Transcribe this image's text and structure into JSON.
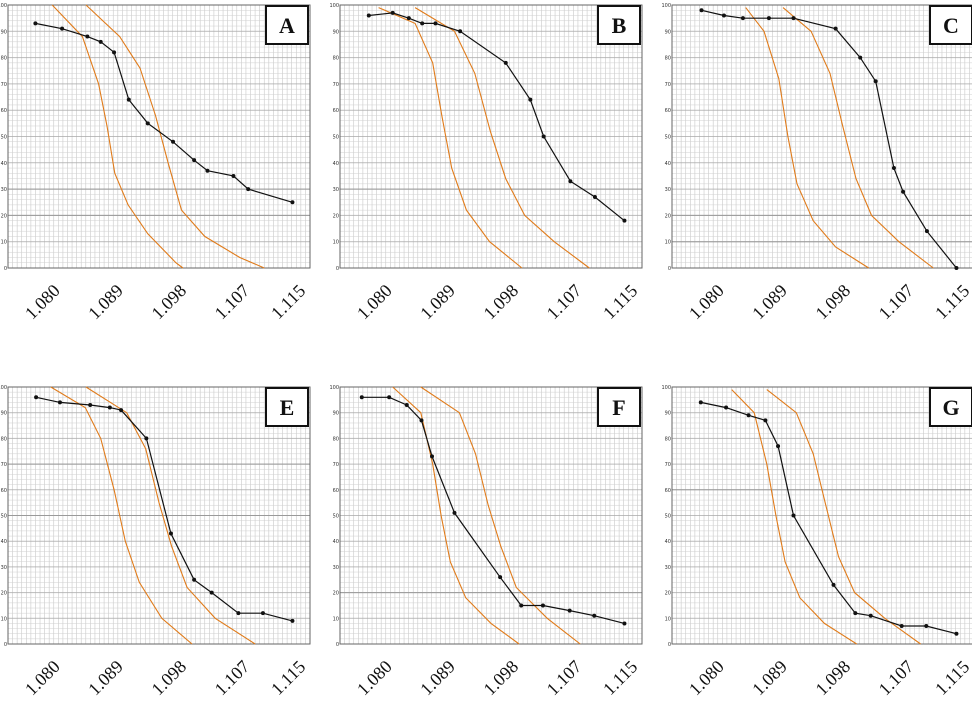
{
  "colors": {
    "envelope": "#e07b1a",
    "series": "#111111",
    "grid_major": "#9a9a9a",
    "grid_minor": "#c8c8c8"
  },
  "chart_data": [
    {
      "type": "line",
      "panel": "A",
      "x_tick_labels": [
        "1.080",
        "1.089",
        "1.098",
        "1.107",
        "1.115"
      ],
      "y_tick_labels": [
        "0",
        "10",
        "20",
        "30",
        "40",
        "50",
        "60",
        "70",
        "80",
        "90",
        "100"
      ],
      "ylim": [
        0,
        100
      ],
      "xlim": [
        1.0745,
        1.1175
      ],
      "grid": true,
      "series": [
        {
          "points": [
            [
              1.0784,
              93
            ],
            [
              1.0822,
              91
            ],
            [
              1.0858,
              88
            ],
            [
              1.0877,
              86
            ],
            [
              1.0896,
              82
            ],
            [
              1.0917,
              64
            ],
            [
              1.0944,
              55
            ],
            [
              1.098,
              48
            ],
            [
              1.101,
              41
            ],
            [
              1.1029,
              37
            ],
            [
              1.1066,
              35
            ],
            [
              1.1087,
              30
            ],
            [
              1.115,
              25
            ]
          ]
        }
      ],
      "envelopes": [
        [
          [
            1.0808,
            100
          ],
          [
            1.0851,
            88
          ],
          [
            1.0874,
            70
          ],
          [
            1.0886,
            54
          ],
          [
            1.0897,
            36
          ],
          [
            1.0916,
            24
          ],
          [
            1.0944,
            13
          ],
          [
            1.0984,
            2
          ],
          [
            1.0994,
            0
          ]
        ],
        [
          [
            1.0856,
            100
          ],
          [
            1.0904,
            88
          ],
          [
            1.0933,
            76
          ],
          [
            1.0955,
            58
          ],
          [
            1.0973,
            40
          ],
          [
            1.0992,
            22
          ],
          [
            1.1025,
            12
          ],
          [
            1.1075,
            4
          ],
          [
            1.111,
            0
          ]
        ]
      ]
    },
    {
      "type": "line",
      "panel": "B",
      "x_tick_labels": [
        "1.080",
        "1.089",
        "1.098",
        "1.107",
        "1.115"
      ],
      "y_tick_labels": [
        "0",
        "10",
        "20",
        "30",
        "40",
        "50",
        "60",
        "70",
        "80",
        "90",
        "100"
      ],
      "ylim": [
        0,
        100
      ],
      "xlim": [
        1.0745,
        1.1175
      ],
      "grid": true,
      "series": [
        {
          "points": [
            [
              1.0786,
              96
            ],
            [
              1.082,
              97
            ],
            [
              1.0843,
              95
            ],
            [
              1.0862,
              93
            ],
            [
              1.0881,
              93
            ],
            [
              1.0916,
              90
            ],
            [
              1.0981,
              78
            ],
            [
              1.1016,
              64
            ],
            [
              1.1035,
              50
            ],
            [
              1.1073,
              33
            ],
            [
              1.1108,
              27
            ],
            [
              1.115,
              18
            ]
          ]
        }
      ],
      "envelopes": [
        [
          [
            1.08,
            99
          ],
          [
            1.0852,
            93
          ],
          [
            1.0877,
            78
          ],
          [
            1.089,
            58
          ],
          [
            1.0904,
            38
          ],
          [
            1.0925,
            22
          ],
          [
            1.0958,
            10
          ],
          [
            1.1004,
            0
          ]
        ],
        [
          [
            1.0852,
            99
          ],
          [
            1.0908,
            90
          ],
          [
            1.0937,
            74
          ],
          [
            1.0959,
            52
          ],
          [
            1.0981,
            34
          ],
          [
            1.1008,
            20
          ],
          [
            1.105,
            10
          ],
          [
            1.11,
            0
          ]
        ]
      ]
    },
    {
      "type": "line",
      "panel": "C",
      "x_tick_labels": [
        "1.080",
        "1.089",
        "1.098",
        "1.107",
        "1.115"
      ],
      "y_tick_labels": [
        "0",
        "10",
        "20",
        "30",
        "40",
        "50",
        "60",
        "70",
        "80",
        "90",
        "100"
      ],
      "ylim": [
        0,
        100
      ],
      "xlim": [
        1.0745,
        1.1175
      ],
      "grid": true,
      "series": [
        {
          "points": [
            [
              1.0787,
              98
            ],
            [
              1.0819,
              96
            ],
            [
              1.0846,
              95
            ],
            [
              1.0883,
              95
            ],
            [
              1.0918,
              95
            ],
            [
              1.0978,
              91
            ],
            [
              1.1013,
              80
            ],
            [
              1.1035,
              71
            ],
            [
              1.1061,
              38
            ],
            [
              1.1074,
              29
            ],
            [
              1.1108,
              14
            ],
            [
              1.115,
              0
            ]
          ]
        }
      ],
      "envelopes": [
        [
          [
            1.085,
            99
          ],
          [
            1.0876,
            90
          ],
          [
            1.0897,
            72
          ],
          [
            1.091,
            50
          ],
          [
            1.0923,
            32
          ],
          [
            1.0946,
            18
          ],
          [
            1.0978,
            8
          ],
          [
            1.1025,
            0
          ]
        ],
        [
          [
            1.0903,
            99
          ],
          [
            1.0943,
            90
          ],
          [
            1.097,
            74
          ],
          [
            1.0988,
            54
          ],
          [
            1.1007,
            34
          ],
          [
            1.1029,
            20
          ],
          [
            1.1068,
            10
          ],
          [
            1.1117,
            0
          ]
        ]
      ]
    },
    {
      "type": "line",
      "panel": "E",
      "x_tick_labels": [
        "1.080",
        "1.089",
        "1.098",
        "1.107",
        "1.115"
      ],
      "y_tick_labels": [
        "0",
        "10",
        "20",
        "30",
        "40",
        "50",
        "60",
        "70",
        "80",
        "90",
        "100"
      ],
      "ylim": [
        0,
        100
      ],
      "xlim": [
        1.0745,
        1.1175
      ],
      "grid": true,
      "series": [
        {
          "points": [
            [
              1.0785,
              96
            ],
            [
              1.0819,
              94
            ],
            [
              1.0862,
              93
            ],
            [
              1.089,
              92
            ],
            [
              1.0906,
              91
            ],
            [
              1.0942,
              80
            ],
            [
              1.0977,
              43
            ],
            [
              1.101,
              25
            ],
            [
              1.1035,
              20
            ],
            [
              1.1073,
              12
            ],
            [
              1.1108,
              12
            ],
            [
              1.115,
              9
            ]
          ]
        }
      ],
      "envelopes": [
        [
          [
            1.0806,
            100
          ],
          [
            1.0855,
            92
          ],
          [
            1.0877,
            80
          ],
          [
            1.0896,
            60
          ],
          [
            1.0912,
            40
          ],
          [
            1.0932,
            24
          ],
          [
            1.0964,
            10
          ],
          [
            1.1007,
            0
          ]
        ],
        [
          [
            1.0856,
            100
          ],
          [
            1.0914,
            90
          ],
          [
            1.0941,
            76
          ],
          [
            1.096,
            55
          ],
          [
            1.0978,
            38
          ],
          [
            1.1,
            22
          ],
          [
            1.104,
            10
          ],
          [
            1.1097,
            0
          ]
        ]
      ]
    },
    {
      "type": "line",
      "panel": "F",
      "x_tick_labels": [
        "1.080",
        "1.089",
        "1.098",
        "1.107",
        "1.115"
      ],
      "y_tick_labels": [
        "0",
        "10",
        "20",
        "30",
        "40",
        "50",
        "60",
        "70",
        "80",
        "90",
        "100"
      ],
      "ylim": [
        0,
        100
      ],
      "xlim": [
        1.0745,
        1.1175
      ],
      "grid": true,
      "series": [
        {
          "points": [
            [
              1.0776,
              96
            ],
            [
              1.0815,
              96
            ],
            [
              1.084,
              93
            ],
            [
              1.0861,
              87
            ],
            [
              1.0876,
              73
            ],
            [
              1.0908,
              51
            ],
            [
              1.0973,
              26
            ],
            [
              1.1003,
              15
            ],
            [
              1.1034,
              15
            ],
            [
              1.1072,
              13
            ],
            [
              1.1107,
              11
            ],
            [
              1.115,
              8
            ]
          ]
        }
      ],
      "envelopes": [
        [
          [
            1.082,
            100
          ],
          [
            1.086,
            90
          ],
          [
            1.0877,
            70
          ],
          [
            1.0889,
            50
          ],
          [
            1.0902,
            32
          ],
          [
            1.0924,
            18
          ],
          [
            1.096,
            8
          ],
          [
            1.1,
            0
          ]
        ],
        [
          [
            1.086,
            100
          ],
          [
            1.0915,
            90
          ],
          [
            1.0938,
            74
          ],
          [
            1.0956,
            54
          ],
          [
            1.0974,
            38
          ],
          [
            1.0996,
            22
          ],
          [
            1.104,
            10
          ],
          [
            1.1087,
            0
          ]
        ]
      ]
    },
    {
      "type": "line",
      "panel": "G",
      "x_tick_labels": [
        "1.080",
        "1.089",
        "1.098",
        "1.107",
        "1.115"
      ],
      "y_tick_labels": [
        "0",
        "10",
        "20",
        "30",
        "40",
        "50",
        "60",
        "70",
        "80",
        "90",
        "100"
      ],
      "ylim": [
        0,
        100
      ],
      "xlim": [
        1.0745,
        1.1175
      ],
      "grid": true,
      "series": [
        {
          "points": [
            [
              1.0786,
              94
            ],
            [
              1.0822,
              92
            ],
            [
              1.0854,
              89
            ],
            [
              1.0878,
              87
            ],
            [
              1.0896,
              77
            ],
            [
              1.0918,
              50
            ],
            [
              1.0975,
              23
            ],
            [
              1.1006,
              12
            ],
            [
              1.1028,
              11
            ],
            [
              1.1072,
              7
            ],
            [
              1.1107,
              7
            ],
            [
              1.115,
              4
            ]
          ]
        }
      ],
      "envelopes": [
        [
          [
            1.083,
            99
          ],
          [
            1.0862,
            90
          ],
          [
            1.088,
            70
          ],
          [
            1.0893,
            50
          ],
          [
            1.0906,
            32
          ],
          [
            1.0927,
            18
          ],
          [
            1.0962,
            8
          ],
          [
            1.1008,
            0
          ]
        ],
        [
          [
            1.088,
            99
          ],
          [
            1.0922,
            90
          ],
          [
            1.0946,
            74
          ],
          [
            1.0964,
            54
          ],
          [
            1.0982,
            34
          ],
          [
            1.1005,
            20
          ],
          [
            1.1048,
            10
          ],
          [
            1.1099,
            0
          ]
        ]
      ]
    }
  ],
  "panel_labels": [
    "A",
    "B",
    "C",
    "E",
    "F",
    "G"
  ]
}
